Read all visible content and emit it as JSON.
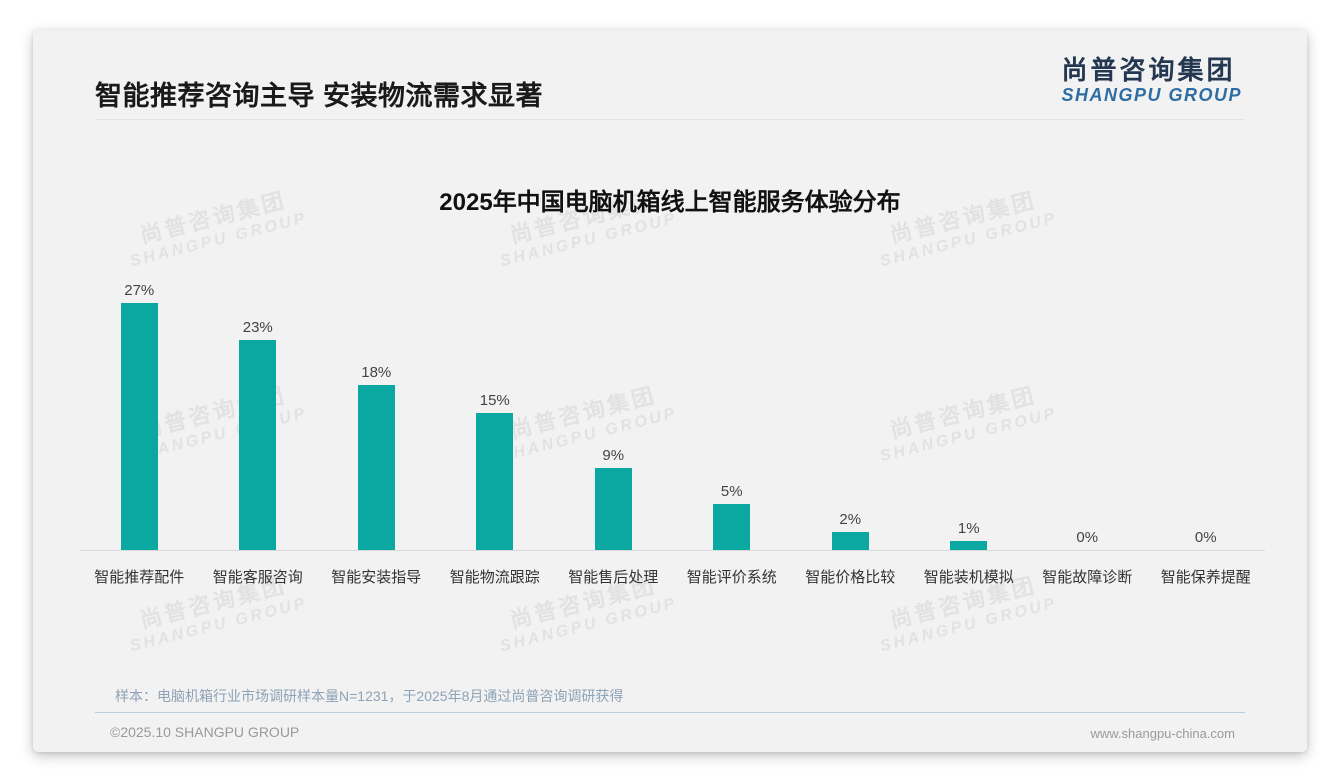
{
  "page": {
    "title": "智能推荐咨询主导 安装物流需求显著",
    "logo": {
      "cn": "尚普咨询集团",
      "en": "SHANGPU GROUP"
    },
    "watermark": {
      "cn": "尚普咨询集团",
      "en": "SHANGPU GROUP"
    },
    "footnote": "样本：电脑机箱行业市场调研样本量N=1231，于2025年8月通过尚普咨询调研获得",
    "footer_left": "©2025.10 SHANGPU GROUP",
    "footer_right": "www.shangpu-china.com"
  },
  "colors": {
    "bar": "#0aa8a0",
    "card_background": "#f2f2f2",
    "logo_cn": "#253852",
    "logo_en": "#2e6da4",
    "footnote_text": "#8da2b5"
  },
  "chart_data": {
    "type": "bar",
    "title": "2025年中国电脑机箱线上智能服务体验分布",
    "categories": [
      "智能推荐配件",
      "智能客服咨询",
      "智能安装指导",
      "智能物流跟踪",
      "智能售后处理",
      "智能评价系统",
      "智能价格比较",
      "智能装机模拟",
      "智能故障诊断",
      "智能保养提醒"
    ],
    "values": [
      27,
      23,
      18,
      15,
      9,
      5,
      2,
      1,
      0,
      0
    ],
    "value_labels": [
      "27%",
      "23%",
      "18%",
      "15%",
      "9%",
      "5%",
      "2%",
      "1%",
      "0%",
      "0%"
    ],
    "unit": "%",
    "xlabel": "",
    "ylabel": "",
    "ylim": [
      0,
      30
    ],
    "grid": false,
    "legend": "none",
    "bar_color": "#0aa8a0"
  }
}
